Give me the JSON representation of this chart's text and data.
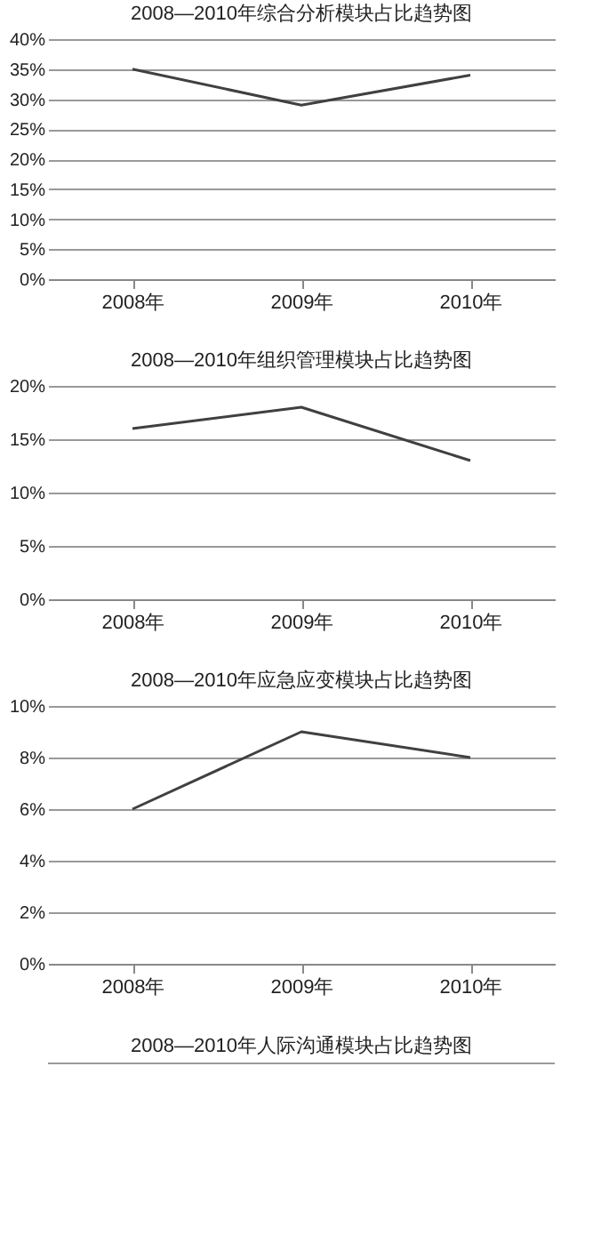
{
  "chart_data": [
    {
      "type": "line",
      "title": "2008—2010年综合分析模块占比趋势图",
      "categories": [
        "2008年",
        "2009年",
        "2010年"
      ],
      "values": [
        35,
        29,
        34
      ],
      "color": "#404040",
      "ylim": [
        0,
        40
      ],
      "yticks": [
        {
          "value": 0,
          "label": "0%"
        },
        {
          "value": 5,
          "label": "5%"
        },
        {
          "value": 10,
          "label": "10%"
        },
        {
          "value": 15,
          "label": "15%"
        },
        {
          "value": 20,
          "label": "20%"
        },
        {
          "value": 25,
          "label": "25%"
        },
        {
          "value": 30,
          "label": "30%"
        },
        {
          "value": 35,
          "label": "35%"
        },
        {
          "value": 40,
          "label": "40%"
        }
      ],
      "grid": "y"
    },
    {
      "type": "line",
      "title": "2008—2010年组织管理模块占比趋势图",
      "categories": [
        "2008年",
        "2009年",
        "2010年"
      ],
      "values": [
        16,
        18,
        13
      ],
      "color": "#404040",
      "ylim": [
        0,
        20
      ],
      "yticks": [
        {
          "value": 0,
          "label": "0%"
        },
        {
          "value": 5,
          "label": "5%"
        },
        {
          "value": 10,
          "label": "10%"
        },
        {
          "value": 15,
          "label": "15%"
        },
        {
          "value": 20,
          "label": "20%"
        }
      ],
      "grid": "y"
    },
    {
      "type": "line",
      "title": "2008—2010年应急应变模块占比趋势图",
      "categories": [
        "2008年",
        "2009年",
        "2010年"
      ],
      "values": [
        6,
        9,
        8
      ],
      "color": "#404040",
      "ylim": [
        0,
        10
      ],
      "yticks": [
        {
          "value": 0,
          "label": "0%"
        },
        {
          "value": 2,
          "label": "2%"
        },
        {
          "value": 4,
          "label": "4%"
        },
        {
          "value": 6,
          "label": "6%"
        },
        {
          "value": 8,
          "label": "8%"
        },
        {
          "value": 10,
          "label": "10%"
        }
      ],
      "grid": "y"
    },
    {
      "type": "other",
      "title": "2008—2010年人际沟通模块占比趋势图"
    }
  ]
}
